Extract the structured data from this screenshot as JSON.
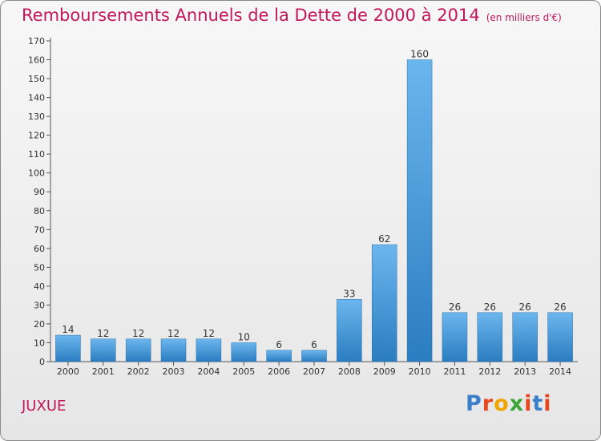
{
  "title": "Remboursements Annuels de la Dette de 2000 à 2014",
  "unit": "(en milliers d'€)",
  "commune": "JUXUE",
  "logo": {
    "letters": [
      "P",
      "r",
      "o",
      "x",
      "i",
      "t",
      "i"
    ],
    "colors": [
      "#3b7ec9",
      "#e8461e",
      "#f0a500",
      "#3aa63a",
      "#e8461e",
      "#3b7ec9",
      "#e8461e"
    ]
  },
  "colors": {
    "title": "#c2185b",
    "bar_top": "#6cb6ee",
    "bar_bottom": "#2a7dc0"
  },
  "chart_data": {
    "type": "bar",
    "categories": [
      "2000",
      "2001",
      "2002",
      "2003",
      "2004",
      "2005",
      "2006",
      "2007",
      "2008",
      "2009",
      "2010",
      "2011",
      "2012",
      "2013",
      "2014"
    ],
    "values": [
      14,
      12,
      12,
      12,
      12,
      10,
      6,
      6,
      33,
      62,
      160,
      26,
      26,
      26,
      26
    ],
    "ylim": [
      0,
      170
    ],
    "yticks": [
      0,
      10,
      20,
      30,
      40,
      50,
      60,
      70,
      80,
      90,
      100,
      110,
      120,
      130,
      140,
      150,
      160,
      170
    ],
    "grid": false
  }
}
